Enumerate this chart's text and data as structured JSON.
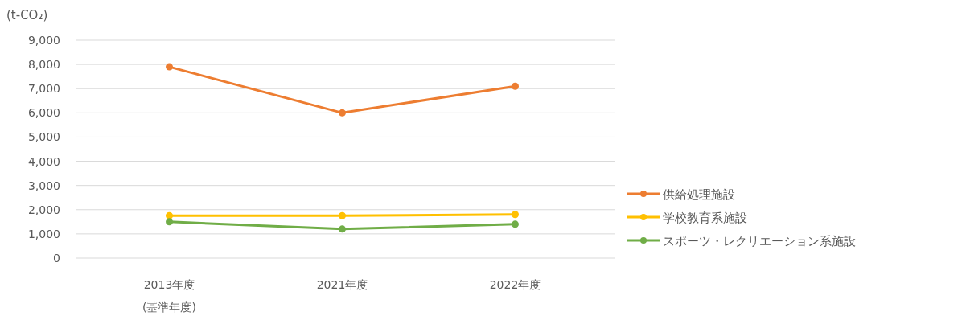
{
  "chart_data": {
    "type": "line",
    "ylabel": "(t-CO₂)",
    "categories": [
      "2013年度\n(基準年度)",
      "2021年度",
      "2022年度"
    ],
    "series": [
      {
        "name": "供給処理施設",
        "color": "#ed7d31",
        "values": [
          7900,
          6000,
          7100
        ]
      },
      {
        "name": "学校教育系施設",
        "color": "#ffc000",
        "values": [
          1750,
          1750,
          1800
        ]
      },
      {
        "name": "スポーツ・レクリエーション系施設",
        "color": "#70ad47",
        "values": [
          1500,
          1200,
          1400
        ]
      }
    ],
    "ylim": [
      0,
      9000
    ],
    "yticks": [
      {
        "value": 0,
        "label": "0"
      },
      {
        "value": 1000,
        "label": "1,000"
      },
      {
        "value": 2000,
        "label": "2,000"
      },
      {
        "value": 3000,
        "label": "3,000"
      },
      {
        "value": 4000,
        "label": "4,000"
      },
      {
        "value": 5000,
        "label": "5,000"
      },
      {
        "value": 6000,
        "label": "6,000"
      },
      {
        "value": 7000,
        "label": "7,000"
      },
      {
        "value": 8000,
        "label": "8,000"
      },
      {
        "value": 9000,
        "label": "9,000"
      }
    ],
    "grid": "y",
    "legend": "right",
    "marker": "circle",
    "line_style": "solid"
  }
}
